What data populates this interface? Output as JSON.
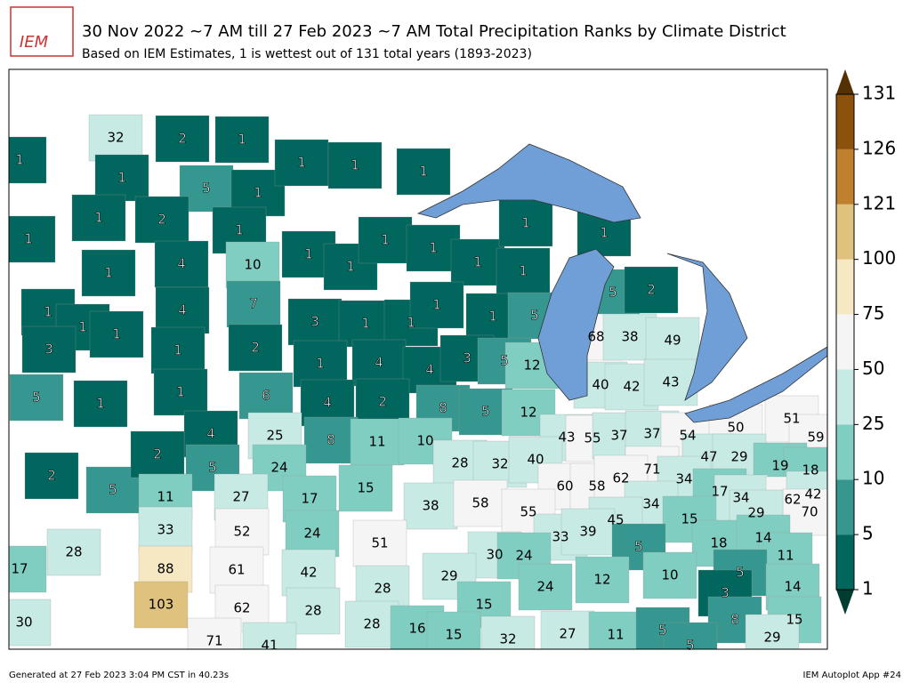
{
  "header": {
    "logo_text": "IEM",
    "title": "30 Nov 2022 ~7 AM till 27 Feb 2023 ~7 AM Total Precipitation Ranks by Climate District",
    "subtitle": "Based on IEM Estimates, 1 is wettest out of 131 total years (1893-2023)"
  },
  "colorbar": {
    "ticks": [
      1,
      5,
      10,
      25,
      50,
      75,
      100,
      121,
      126,
      131
    ],
    "colors": [
      "#01665e",
      "#35978f",
      "#80cdc1",
      "#c7eae5",
      "#f5f5f5",
      "#f6e8c3",
      "#dfc27d",
      "#bf812d",
      "#8c510a"
    ],
    "under": "#003c30",
    "over": "#543005"
  },
  "districts": [
    32,
    2,
    1,
    1,
    1,
    5,
    1,
    1,
    1,
    2,
    1,
    1,
    1,
    1,
    1,
    1,
    1,
    1,
    1,
    1,
    1,
    1,
    10,
    4,
    1,
    7,
    4,
    1,
    1,
    1,
    3,
    1,
    2,
    3,
    1,
    1,
    1,
    1,
    5,
    5,
    2,
    1,
    4,
    4,
    3,
    5,
    12,
    5,
    1,
    1,
    6,
    4,
    2,
    8,
    5,
    12,
    68,
    38,
    49,
    40,
    42,
    43,
    4,
    25,
    8,
    11,
    10,
    43,
    55,
    37,
    37,
    54,
    50,
    51,
    59,
    2,
    5,
    2,
    5,
    24,
    28,
    32,
    40,
    71,
    47,
    29,
    19,
    18,
    15,
    11,
    27,
    17,
    60,
    58,
    62,
    34,
    17,
    34,
    62,
    42,
    70,
    38,
    58,
    55,
    34,
    29,
    33,
    52,
    24,
    15,
    45,
    18,
    14,
    51,
    33,
    39,
    5,
    88,
    61,
    42,
    30,
    24,
    11,
    29,
    5,
    10,
    17,
    28,
    28,
    24,
    12,
    14,
    3,
    103,
    62,
    28,
    30,
    15,
    8,
    15,
    28,
    16,
    15,
    32,
    27,
    11,
    5,
    29,
    71,
    41,
    5
  ],
  "footer": {
    "left": "Generated at 27 Feb 2023 3:04 PM CST in 40.23s",
    "right": "IEM Autoplot App #24"
  }
}
